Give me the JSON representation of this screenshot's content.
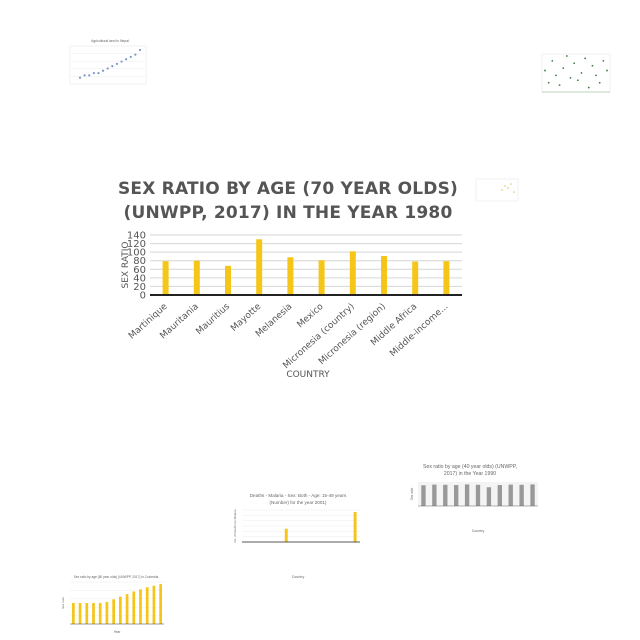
{
  "main_chart": {
    "title_line1": "SEX RATIO BY AGE (70 YEAR OLDS)",
    "title_line2": "(UNWPP, 2017) IN THE YEAR 1980",
    "xlabel": "COUNTRY",
    "ylabel": "SEX RATIO",
    "y_ticks": [
      "0",
      "20",
      "40",
      "60",
      "80",
      "100",
      "120",
      "140"
    ]
  },
  "chart_data": [
    {
      "type": "bar",
      "title": "SEX RATIO BY AGE (70 YEAR OLDS) (UNWPP, 2017) IN THE YEAR 1980",
      "xlabel": "COUNTRY",
      "ylabel": "SEX RATIO",
      "categories": [
        "Martinique",
        "Mauritania",
        "Mauritius",
        "Mayotte",
        "Melanesia",
        "Mexico",
        "Micronesia (country)",
        "Micronesia (region)",
        "Middle Africa",
        "Middle-income..."
      ],
      "values": [
        79,
        80,
        68,
        130,
        88,
        81,
        102,
        91,
        78,
        79
      ],
      "ylim": [
        0,
        140
      ],
      "grid": true,
      "color": "#f5c518"
    },
    {
      "type": "scatter",
      "title": "Agricultural land in Nepal",
      "values": [
        1,
        2,
        2,
        3,
        3,
        4,
        5,
        6,
        7,
        8,
        9,
        10,
        11,
        13
      ],
      "color": "#7f95c9"
    },
    {
      "type": "scatter",
      "title": "",
      "values": [
        8,
        3,
        12,
        6,
        2,
        9,
        14,
        5,
        11,
        4,
        7,
        13,
        1,
        10,
        6,
        3,
        12,
        8
      ],
      "color": "#3a7d44"
    },
    {
      "type": "scatter",
      "title": "",
      "values": [
        4,
        6,
        5,
        7,
        3
      ],
      "color": "#cccc66"
    },
    {
      "type": "bar",
      "title": "Sex ratio by age (40 year olds) (UNWPP, 2017) in the Year 1990",
      "xlabel": "Country",
      "ylabel": "Sex ratio",
      "values": [
        95,
        98,
        97,
        96,
        99,
        97,
        86,
        96,
        98,
        97,
        99
      ],
      "color": "#999999"
    },
    {
      "type": "bar",
      "title": "Deaths - Malaria - Sex: Both - Age: 15-49 years (Number) for the year 2001",
      "title_line1": "Deaths - Malaria - Sex: Both - Age: 15-49 years",
      "title_line2": "(Number) for the year 2001)",
      "xlabel": "Country",
      "ylabel": "No. of Deaths by Malaria",
      "values": [
        0,
        0,
        0,
        0,
        42,
        0,
        0,
        0,
        0,
        0,
        0,
        95
      ],
      "color": "#f5c518"
    },
    {
      "type": "bar",
      "title": "Sex ratio by age (80 year olds) (UNWPP, 2017) in Colombia",
      "xlabel": "Year",
      "ylabel": "Sex ratio",
      "values": [
        40,
        40,
        40,
        40,
        40,
        42,
        47,
        52,
        57,
        62,
        66,
        70,
        73,
        76
      ],
      "color": "#f5c518"
    }
  ]
}
